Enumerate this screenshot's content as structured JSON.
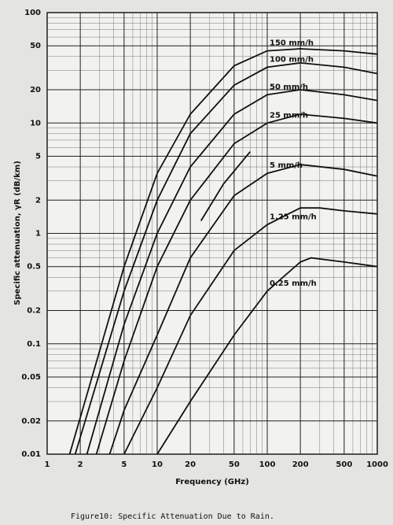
{
  "chart_data": {
    "type": "line",
    "xlabel": "Frequency (GHz)",
    "ylabel": "Specific attenuation, γR (dB/km)",
    "caption": "Figure10: Specific Attenuation Due to Rain.",
    "xscale": "log",
    "yscale": "log",
    "grid": true,
    "xlim": [
      1,
      1000
    ],
    "ylim": [
      0.01,
      100
    ],
    "xticks": [
      1,
      2,
      5,
      10,
      20,
      50,
      100,
      200,
      500,
      1000
    ],
    "yticks": [
      100,
      50,
      20,
      10,
      5,
      2,
      1,
      0.5,
      0.2,
      0.1,
      0.05,
      0.02,
      0.01
    ],
    "color": "#111111",
    "series": [
      {
        "name": "150 mm/h",
        "x": [
          1.6,
          5,
          10,
          20,
          50,
          100,
          200,
          500,
          1000
        ],
        "values": [
          0.01,
          0.5,
          3.5,
          12,
          33,
          45,
          47,
          45,
          42
        ]
      },
      {
        "name": "100 mm/h",
        "x": [
          1.8,
          5,
          10,
          20,
          50,
          100,
          200,
          500,
          1000
        ],
        "values": [
          0.01,
          0.3,
          2,
          8,
          22,
          32,
          35,
          32,
          28
        ]
      },
      {
        "name": "50 mm/h",
        "x": [
          2.3,
          5,
          10,
          20,
          50,
          100,
          200,
          500,
          1000
        ],
        "values": [
          0.01,
          0.15,
          1,
          4,
          12,
          18,
          20,
          18,
          16
        ]
      },
      {
        "name": "25 mm/h",
        "x": [
          2.8,
          5,
          10,
          20,
          50,
          100,
          200,
          500,
          1000
        ],
        "values": [
          0.01,
          0.07,
          0.5,
          2,
          6.5,
          10,
          12,
          11,
          10
        ]
      },
      {
        "name": null,
        "x": [
          25,
          40,
          70
        ],
        "values": [
          1.3,
          2.8,
          5.5
        ]
      },
      {
        "name": "5 mm/h",
        "x": [
          3.7,
          5,
          10,
          20,
          50,
          100,
          200,
          500,
          1000
        ],
        "values": [
          0.01,
          0.025,
          0.12,
          0.6,
          2.2,
          3.5,
          4.2,
          3.8,
          3.3
        ]
      },
      {
        "name": "1.25 mm/h",
        "x": [
          5,
          10,
          20,
          50,
          100,
          200,
          300,
          500,
          1000
        ],
        "values": [
          0.01,
          0.04,
          0.18,
          0.7,
          1.2,
          1.7,
          1.7,
          1.6,
          1.5
        ]
      },
      {
        "name": "0.25 mm/h",
        "x": [
          10,
          20,
          50,
          100,
          200,
          250,
          500,
          1000
        ],
        "values": [
          0.01,
          0.03,
          0.12,
          0.3,
          0.55,
          0.6,
          0.55,
          0.5
        ]
      }
    ]
  }
}
